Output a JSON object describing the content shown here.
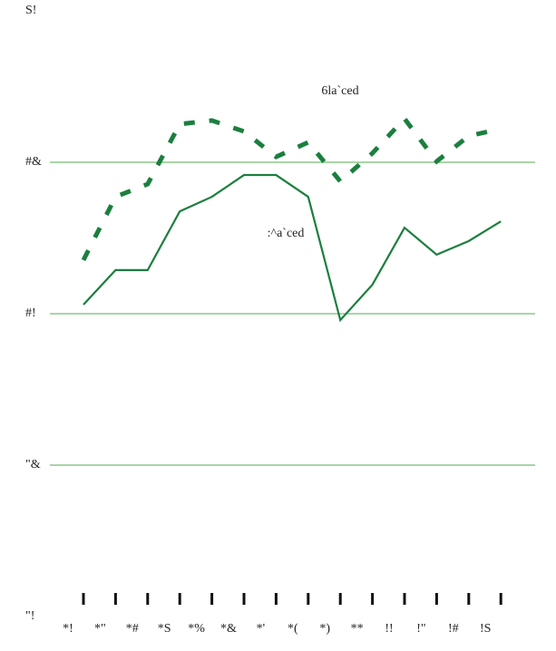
{
  "chart_data": {
    "type": "line",
    "categories": [
      "*!",
      "*\"",
      "*#",
      "*S",
      "*%",
      "*&",
      "*'",
      "*(",
      "*)",
      "**",
      "!!",
      "!\"",
      "!#",
      "!S"
    ],
    "series": [
      {
        "name": "6la`ced",
        "color": "#1b7f3e",
        "dashed": true,
        "values": [
          21.77,
          23.86,
          24.28,
          26.26,
          26.38,
          26.02,
          25.18,
          25.66,
          24.37,
          25.3,
          26.44,
          25.03,
          25.87,
          26.11
        ]
      },
      {
        "name": ":^a`ced",
        "color": "#1b7f3e",
        "dashed": false,
        "values": [
          20.3,
          21.44,
          21.44,
          23.38,
          23.86,
          24.58,
          24.58,
          23.86,
          19.79,
          20.96,
          22.84,
          21.95,
          22.4,
          23.05
        ]
      }
    ],
    "ylim": [
      10,
      30
    ],
    "yticks": [
      {
        "value": 10,
        "label": "\"!"
      },
      {
        "value": 15,
        "label": "\"&"
      },
      {
        "value": 20,
        "label": "#!"
      },
      {
        "value": 25,
        "label": "#&"
      },
      {
        "value": 30,
        "label": "S!"
      }
    ],
    "grid": true,
    "grid_color": "#a8d5a8"
  }
}
